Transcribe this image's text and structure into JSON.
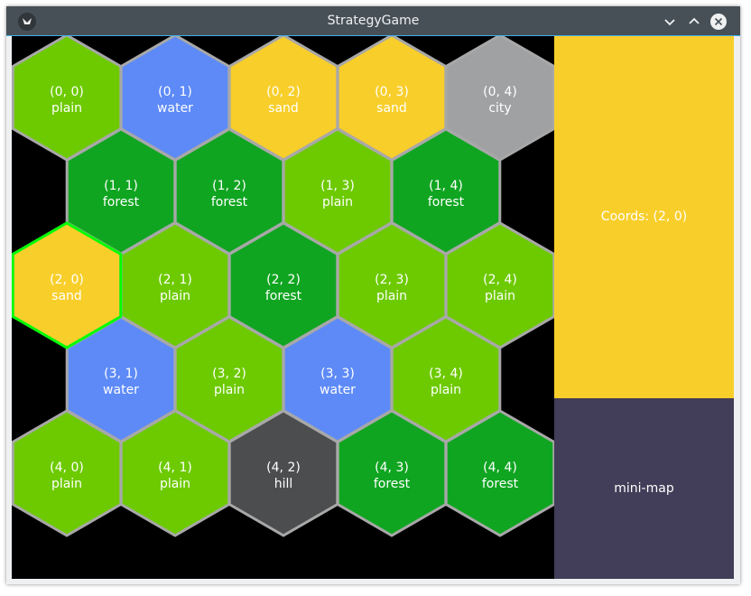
{
  "window": {
    "title": "StrategyGame"
  },
  "titlebar_buttons": [
    {
      "name": "minimize-button",
      "icon": "chevron-down-icon"
    },
    {
      "name": "maximize-button",
      "icon": "chevron-up-icon"
    },
    {
      "name": "close-button",
      "icon": "close-icon"
    }
  ],
  "colors": {
    "plain": "#6dca00",
    "water": "#5d8af7",
    "sand": "#f8ce2a",
    "forest": "#10a521",
    "city": "#a0a1a3",
    "hill": "#4b4d4e",
    "hex_border": "#a8a8a8",
    "selected_border": "#00ff00",
    "background": "#000000",
    "info_panel": "#f8ce2a",
    "minimap_panel": "#423d58"
  },
  "map": {
    "selected": "2,0",
    "rows": [
      [
        {
          "coord": "(0, 0)",
          "terrain": "plain"
        },
        {
          "coord": "(0, 1)",
          "terrain": "water"
        },
        {
          "coord": "(0, 2)",
          "terrain": "sand"
        },
        {
          "coord": "(0, 3)",
          "terrain": "sand"
        },
        {
          "coord": "(0, 4)",
          "terrain": "city"
        }
      ],
      [
        {
          "coord": "(1, 1)",
          "terrain": "forest"
        },
        {
          "coord": "(1, 2)",
          "terrain": "forest"
        },
        {
          "coord": "(1, 3)",
          "terrain": "plain"
        },
        {
          "coord": "(1, 4)",
          "terrain": "forest"
        }
      ],
      [
        {
          "coord": "(2, 0)",
          "terrain": "sand"
        },
        {
          "coord": "(2, 1)",
          "terrain": "plain"
        },
        {
          "coord": "(2, 2)",
          "terrain": "forest"
        },
        {
          "coord": "(2, 3)",
          "terrain": "plain"
        },
        {
          "coord": "(2, 4)",
          "terrain": "plain"
        }
      ],
      [
        {
          "coord": "(3, 1)",
          "terrain": "water"
        },
        {
          "coord": "(3, 2)",
          "terrain": "plain"
        },
        {
          "coord": "(3, 3)",
          "terrain": "water"
        },
        {
          "coord": "(3, 4)",
          "terrain": "plain"
        }
      ],
      [
        {
          "coord": "(4, 0)",
          "terrain": "plain"
        },
        {
          "coord": "(4, 1)",
          "terrain": "plain"
        },
        {
          "coord": "(4, 2)",
          "terrain": "hill"
        },
        {
          "coord": "(4, 3)",
          "terrain": "forest"
        },
        {
          "coord": "(4, 4)",
          "terrain": "forest"
        }
      ]
    ]
  },
  "side_panel": {
    "coords_text": "Coords: (2, 0)"
  },
  "minimap": {
    "label": "mini-map"
  }
}
